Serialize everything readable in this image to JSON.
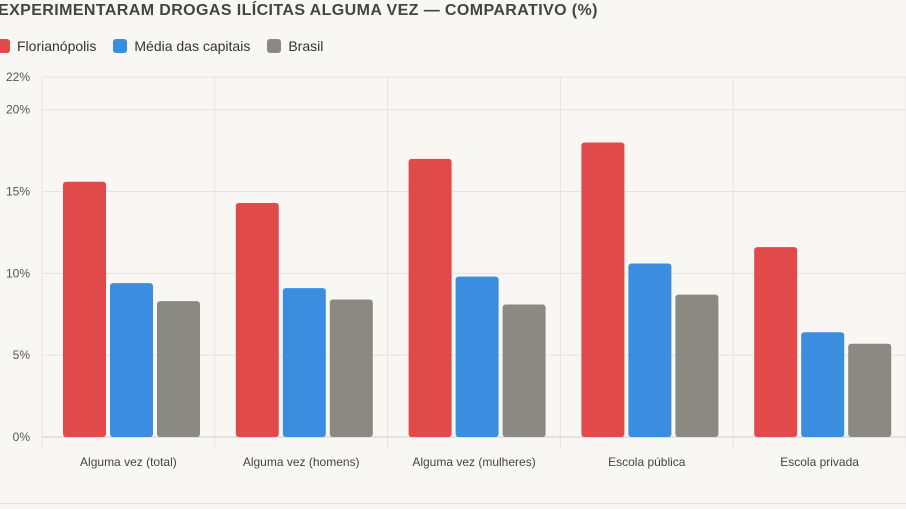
{
  "chart_data": {
    "type": "bar",
    "title": "EXPERIMENTARAM DROGAS ILÍCITAS ALGUMA VEZ — COMPARATIVO (%)",
    "categories": [
      "Alguma vez (total)",
      "Alguma vez (homens)",
      "Alguma vez (mulheres)",
      "Escola pública",
      "Escola privada"
    ],
    "series": [
      {
        "name": "Florianópolis",
        "color": "#e04a4a",
        "values": [
          15.6,
          14.3,
          17.0,
          18.0,
          11.6
        ]
      },
      {
        "name": "Média das capitais",
        "color": "#3b8de0",
        "values": [
          9.4,
          9.1,
          9.8,
          10.6,
          6.4
        ]
      },
      {
        "name": "Brasil",
        "color": "#8a8a82",
        "values": [
          8.3,
          8.4,
          8.1,
          8.7,
          5.7
        ]
      }
    ],
    "ylim": [
      0,
      22
    ],
    "yticks": [
      "0%",
      "5%",
      "10%",
      "15%",
      "20%",
      "22%"
    ],
    "ytick_values": [
      0,
      5,
      10,
      15,
      20,
      22
    ],
    "grid": true,
    "legend_position": "top-left"
  }
}
